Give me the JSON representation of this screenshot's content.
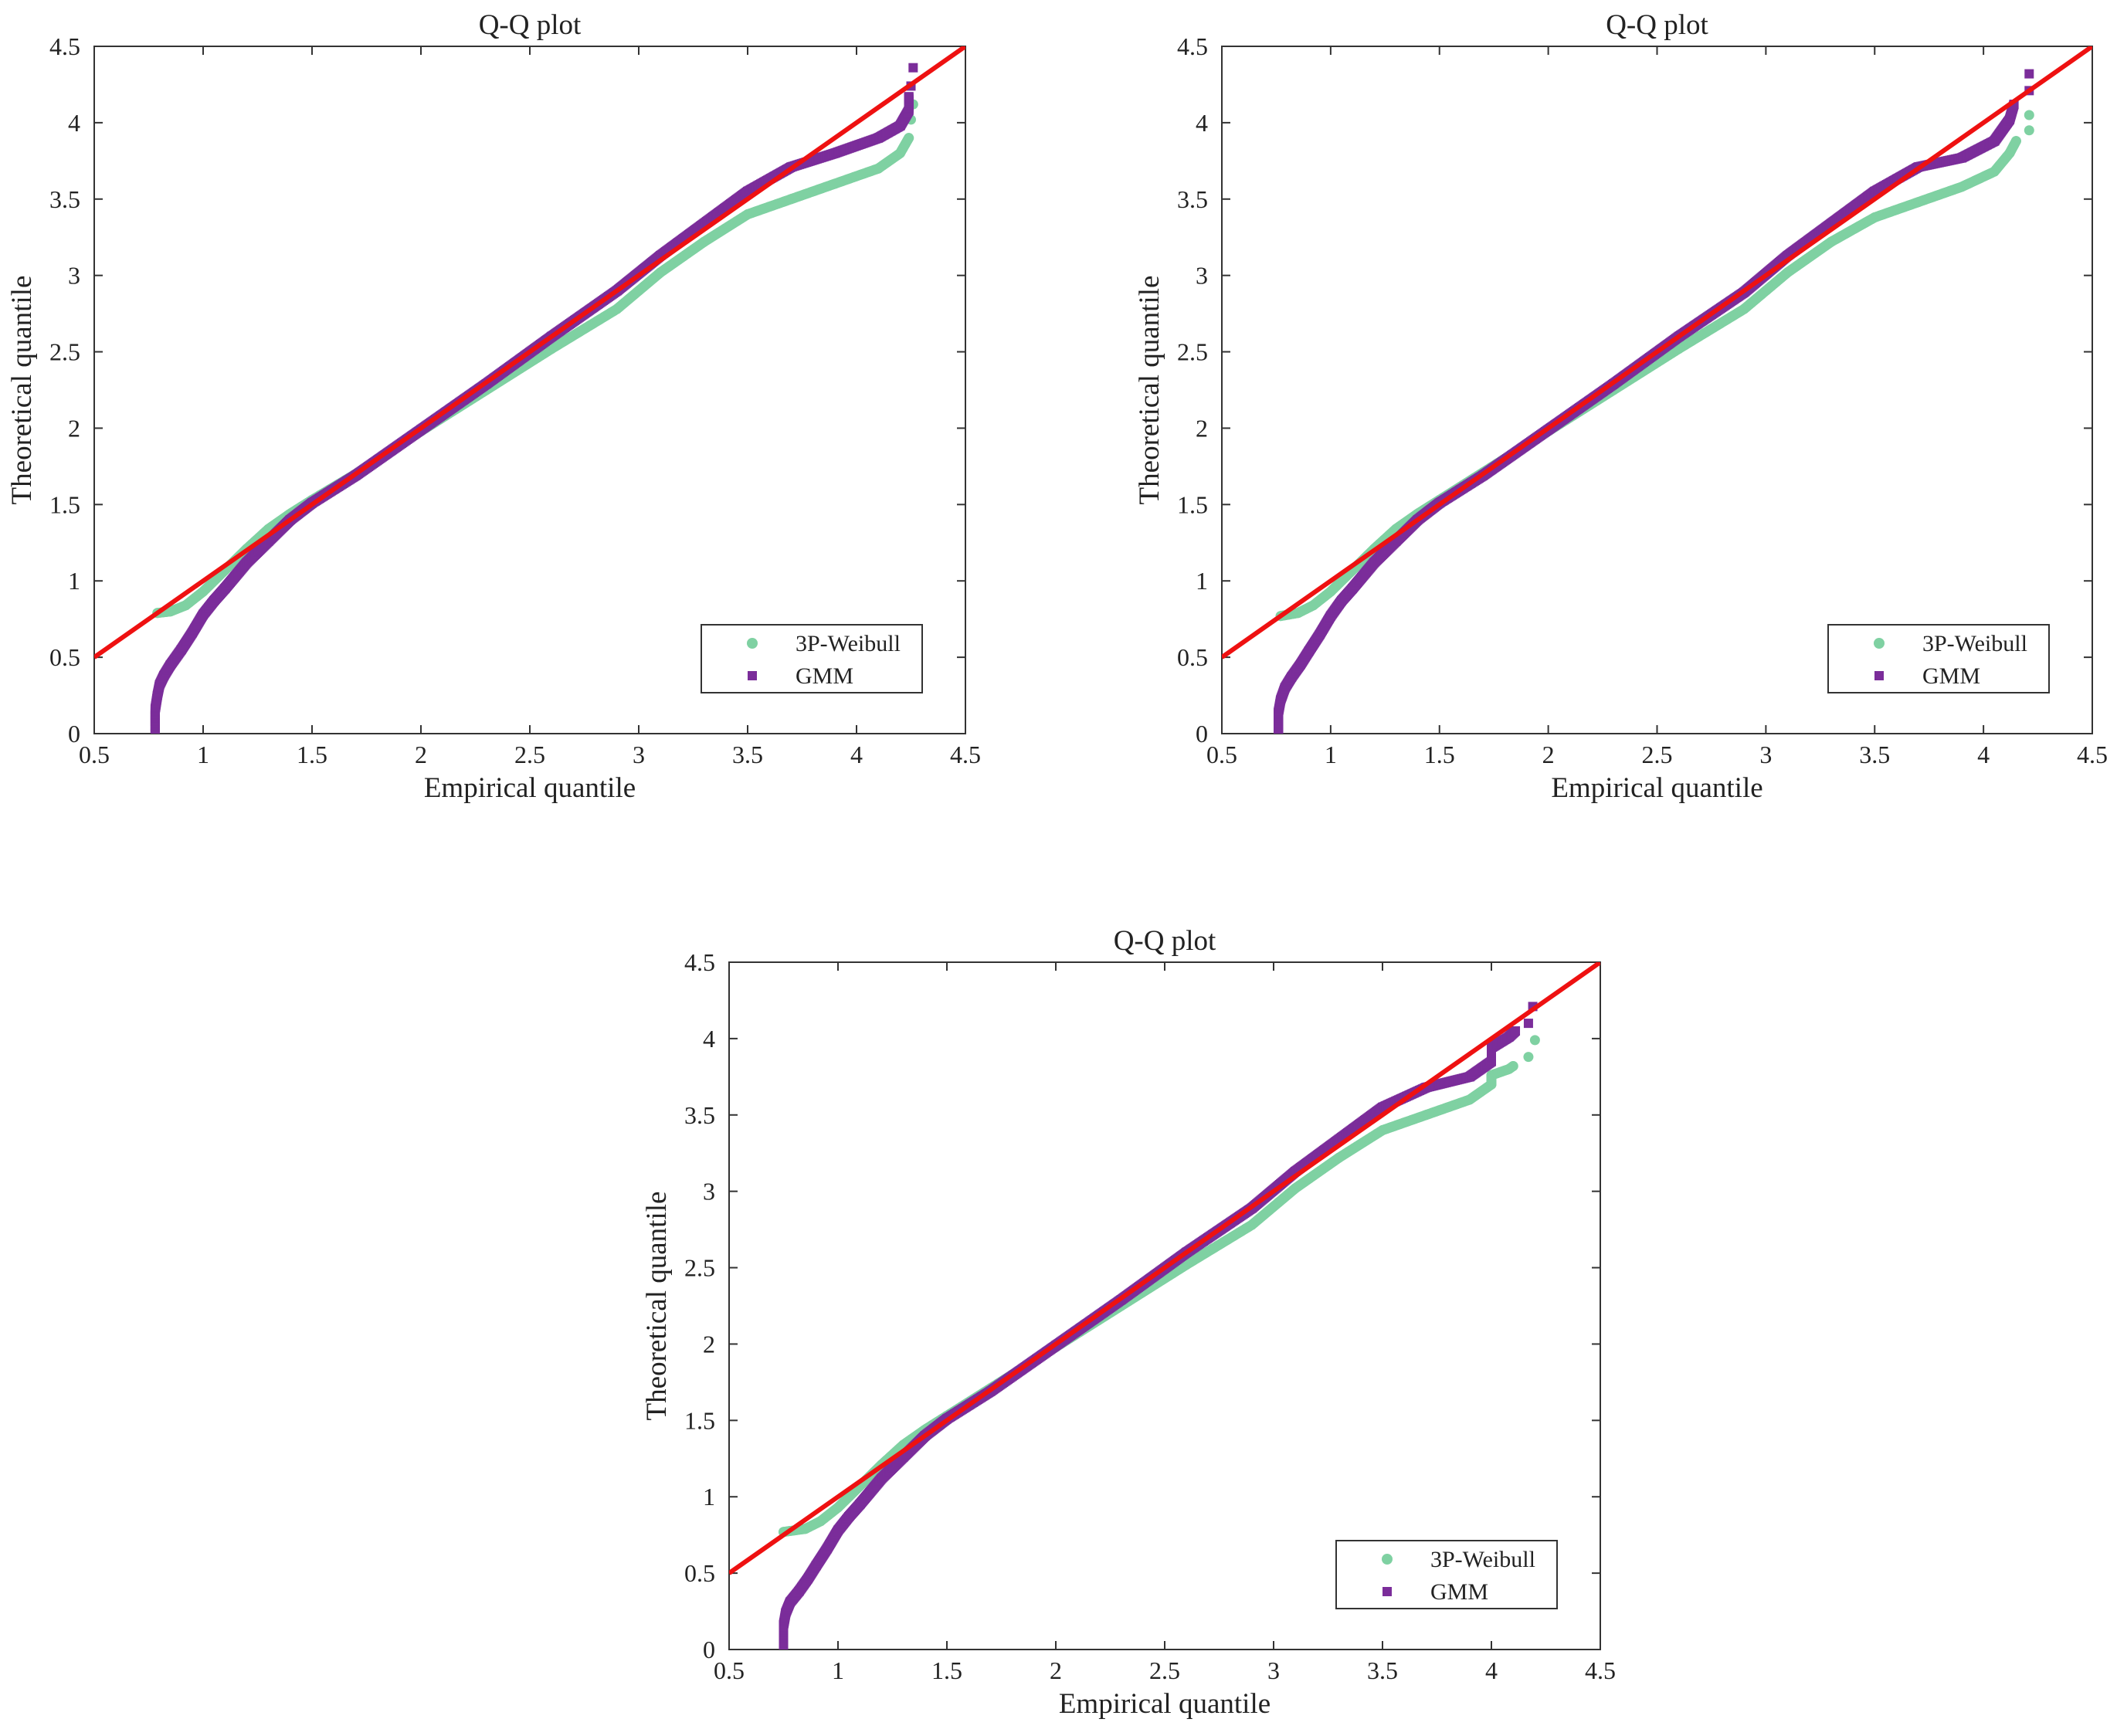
{
  "chart_data": [
    {
      "type": "scatter",
      "title": "Q-Q plot",
      "xlabel": "Empirical quantile",
      "ylabel": "Theoretical quantile",
      "xlim": [
        0.5,
        4.5
      ],
      "ylim": [
        0,
        4.5
      ],
      "xticks": [
        "0.5",
        "1",
        "1.5",
        "2",
        "2.5",
        "3",
        "3.5",
        "4",
        "4.5"
      ],
      "yticks": [
        "0",
        "0.5",
        "1",
        "1.5",
        "2",
        "2.5",
        "3",
        "3.5",
        "4",
        "4.5"
      ],
      "legend_position": "bottom-right",
      "reference_line": {
        "x": [
          0.5,
          4.5
        ],
        "y": [
          0.5,
          4.5
        ],
        "color": "#ee1111"
      },
      "series": [
        {
          "name": "3P-Weibull",
          "marker": "circle",
          "color": "#7fd1a2",
          "points": [
            [
              0.79,
              0.79
            ],
            [
              0.85,
              0.8
            ],
            [
              0.92,
              0.84
            ],
            [
              1.0,
              0.93
            ],
            [
              1.1,
              1.07
            ],
            [
              1.2,
              1.21
            ],
            [
              1.3,
              1.34
            ],
            [
              1.4,
              1.44
            ],
            [
              1.5,
              1.53
            ],
            [
              1.7,
              1.7
            ],
            [
              2.0,
              1.98
            ],
            [
              2.3,
              2.25
            ],
            [
              2.6,
              2.52
            ],
            [
              2.9,
              2.78
            ],
            [
              3.1,
              3.02
            ],
            [
              3.3,
              3.22
            ],
            [
              3.5,
              3.4
            ],
            [
              3.7,
              3.5
            ],
            [
              3.9,
              3.6
            ],
            [
              4.1,
              3.7
            ],
            [
              4.2,
              3.8
            ],
            [
              4.24,
              3.9
            ],
            [
              4.25,
              4.02
            ],
            [
              4.26,
              4.12
            ]
          ]
        },
        {
          "name": "GMM",
          "marker": "square",
          "color": "#7b2d9a",
          "points": [
            [
              0.78,
              0.0
            ],
            [
              0.78,
              0.08
            ],
            [
              0.78,
              0.12
            ],
            [
              0.78,
              0.16
            ],
            [
              0.79,
              0.25
            ],
            [
              0.8,
              0.32
            ],
            [
              0.82,
              0.38
            ],
            [
              0.85,
              0.45
            ],
            [
              0.9,
              0.55
            ],
            [
              0.95,
              0.66
            ],
            [
              1.0,
              0.78
            ],
            [
              1.05,
              0.87
            ],
            [
              1.1,
              0.95
            ],
            [
              1.2,
              1.12
            ],
            [
              1.3,
              1.26
            ],
            [
              1.4,
              1.4
            ],
            [
              1.5,
              1.51
            ],
            [
              1.7,
              1.69
            ],
            [
              2.0,
              1.99
            ],
            [
              2.3,
              2.29
            ],
            [
              2.6,
              2.6
            ],
            [
              2.9,
              2.9
            ],
            [
              3.1,
              3.13
            ],
            [
              3.3,
              3.34
            ],
            [
              3.5,
              3.55
            ],
            [
              3.7,
              3.71
            ],
            [
              3.9,
              3.8
            ],
            [
              4.1,
              3.9
            ],
            [
              4.2,
              3.98
            ],
            [
              4.24,
              4.08
            ],
            [
              4.24,
              4.17
            ],
            [
              4.25,
              4.24
            ],
            [
              4.26,
              4.36
            ]
          ]
        }
      ]
    },
    {
      "type": "scatter",
      "title": "Q-Q plot",
      "xlabel": "Empirical quantile",
      "ylabel": "Theoretical quantile",
      "xlim": [
        0.5,
        4.5
      ],
      "ylim": [
        0,
        4.5
      ],
      "xticks": [
        "0.5",
        "1",
        "1.5",
        "2",
        "2.5",
        "3",
        "3.5",
        "4",
        "4.5"
      ],
      "yticks": [
        "0",
        "0.5",
        "1",
        "1.5",
        "2",
        "2.5",
        "3",
        "3.5",
        "4",
        "4.5"
      ],
      "legend_position": "bottom-right",
      "reference_line": {
        "x": [
          0.5,
          4.5
        ],
        "y": [
          0.5,
          4.5
        ],
        "color": "#ee1111"
      },
      "series": [
        {
          "name": "3P-Weibull",
          "marker": "circle",
          "color": "#7fd1a2",
          "points": [
            [
              0.77,
              0.77
            ],
            [
              0.85,
              0.79
            ],
            [
              0.92,
              0.84
            ],
            [
              1.0,
              0.93
            ],
            [
              1.1,
              1.07
            ],
            [
              1.2,
              1.21
            ],
            [
              1.3,
              1.34
            ],
            [
              1.4,
              1.44
            ],
            [
              1.5,
              1.53
            ],
            [
              1.7,
              1.71
            ],
            [
              2.0,
              1.98
            ],
            [
              2.3,
              2.25
            ],
            [
              2.6,
              2.52
            ],
            [
              2.9,
              2.78
            ],
            [
              3.1,
              3.02
            ],
            [
              3.3,
              3.22
            ],
            [
              3.5,
              3.38
            ],
            [
              3.7,
              3.48
            ],
            [
              3.9,
              3.58
            ],
            [
              4.05,
              3.68
            ],
            [
              4.12,
              3.8
            ],
            [
              4.15,
              3.88
            ],
            [
              4.21,
              3.95
            ],
            [
              4.21,
              4.05
            ]
          ]
        },
        {
          "name": "GMM",
          "marker": "square",
          "color": "#7b2d9a",
          "points": [
            [
              0.76,
              0.0
            ],
            [
              0.76,
              0.08
            ],
            [
              0.76,
              0.14
            ],
            [
              0.77,
              0.22
            ],
            [
              0.79,
              0.3
            ],
            [
              0.82,
              0.37
            ],
            [
              0.86,
              0.45
            ],
            [
              0.9,
              0.54
            ],
            [
              0.95,
              0.65
            ],
            [
              1.0,
              0.77
            ],
            [
              1.05,
              0.87
            ],
            [
              1.1,
              0.95
            ],
            [
              1.2,
              1.12
            ],
            [
              1.3,
              1.26
            ],
            [
              1.4,
              1.4
            ],
            [
              1.5,
              1.51
            ],
            [
              1.7,
              1.69
            ],
            [
              2.0,
              1.99
            ],
            [
              2.3,
              2.29
            ],
            [
              2.6,
              2.6
            ],
            [
              2.9,
              2.89
            ],
            [
              3.1,
              3.13
            ],
            [
              3.3,
              3.34
            ],
            [
              3.5,
              3.55
            ],
            [
              3.7,
              3.71
            ],
            [
              3.9,
              3.77
            ],
            [
              4.05,
              3.88
            ],
            [
              4.12,
              4.02
            ],
            [
              4.14,
              4.12
            ],
            [
              4.21,
              4.21
            ],
            [
              4.21,
              4.32
            ]
          ]
        }
      ]
    },
    {
      "type": "scatter",
      "title": "Q-Q plot",
      "xlabel": "Empirical quantile",
      "ylabel": "Theoretical quantile",
      "xlim": [
        0.5,
        4.5
      ],
      "ylim": [
        0,
        4.5
      ],
      "xticks": [
        "0.5",
        "1",
        "1.5",
        "2",
        "2.5",
        "3",
        "3.5",
        "4",
        "4.5"
      ],
      "yticks": [
        "0",
        "0.5",
        "1",
        "1.5",
        "2",
        "2.5",
        "3",
        "3.5",
        "4",
        "4.5"
      ],
      "legend_position": "bottom-right",
      "reference_line": {
        "x": [
          0.5,
          4.5
        ],
        "y": [
          0.5,
          4.5
        ],
        "color": "#ee1111"
      },
      "series": [
        {
          "name": "3P-Weibull",
          "marker": "circle",
          "color": "#7fd1a2",
          "points": [
            [
              0.75,
              0.77
            ],
            [
              0.85,
              0.79
            ],
            [
              0.92,
              0.84
            ],
            [
              1.0,
              0.93
            ],
            [
              1.1,
              1.07
            ],
            [
              1.2,
              1.21
            ],
            [
              1.3,
              1.34
            ],
            [
              1.4,
              1.44
            ],
            [
              1.5,
              1.53
            ],
            [
              1.7,
              1.71
            ],
            [
              2.0,
              1.98
            ],
            [
              2.3,
              2.25
            ],
            [
              2.6,
              2.52
            ],
            [
              2.9,
              2.78
            ],
            [
              3.1,
              3.02
            ],
            [
              3.3,
              3.22
            ],
            [
              3.5,
              3.4
            ],
            [
              3.7,
              3.5
            ],
            [
              3.9,
              3.6
            ],
            [
              4.0,
              3.7
            ],
            [
              4.0,
              3.76
            ],
            [
              4.08,
              3.8
            ],
            [
              4.1,
              3.82
            ],
            [
              4.17,
              3.88
            ],
            [
              4.2,
              3.99
            ]
          ]
        },
        {
          "name": "GMM",
          "marker": "square",
          "color": "#7b2d9a",
          "points": [
            [
              0.75,
              0.0
            ],
            [
              0.75,
              0.1
            ],
            [
              0.75,
              0.16
            ],
            [
              0.76,
              0.24
            ],
            [
              0.78,
              0.31
            ],
            [
              0.82,
              0.38
            ],
            [
              0.86,
              0.46
            ],
            [
              0.9,
              0.55
            ],
            [
              0.95,
              0.66
            ],
            [
              1.0,
              0.78
            ],
            [
              1.05,
              0.87
            ],
            [
              1.1,
              0.95
            ],
            [
              1.2,
              1.12
            ],
            [
              1.3,
              1.26
            ],
            [
              1.4,
              1.4
            ],
            [
              1.5,
              1.51
            ],
            [
              1.7,
              1.69
            ],
            [
              2.0,
              1.99
            ],
            [
              2.3,
              2.29
            ],
            [
              2.6,
              2.6
            ],
            [
              2.9,
              2.89
            ],
            [
              3.1,
              3.13
            ],
            [
              3.3,
              3.34
            ],
            [
              3.5,
              3.55
            ],
            [
              3.7,
              3.68
            ],
            [
              3.9,
              3.75
            ],
            [
              4.0,
              3.85
            ],
            [
              4.0,
              3.94
            ],
            [
              4.08,
              4.01
            ],
            [
              4.11,
              4.05
            ],
            [
              4.17,
              4.1
            ],
            [
              4.19,
              4.21
            ]
          ]
        }
      ]
    }
  ]
}
